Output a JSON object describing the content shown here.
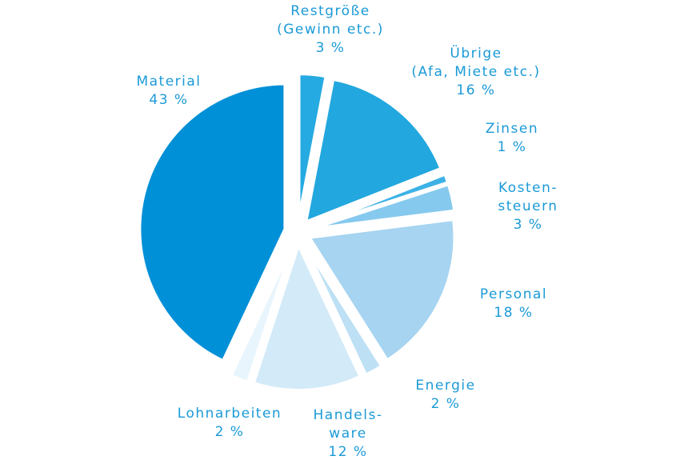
{
  "chart_data": {
    "type": "pie",
    "categories": [
      "Restgröße\n(Gewinn etc.)",
      "Übrige\n(Afa, Miete etc.)",
      "Zinsen",
      "Kosten-\nsteuern",
      "Personal",
      "Energie",
      "Handels-\nware",
      "Lohnarbeiten",
      "Material"
    ],
    "values": [
      3,
      16,
      1,
      3,
      18,
      2,
      12,
      2,
      43
    ],
    "value_labels": [
      "3 %",
      "16 %",
      "1 %",
      "3 %",
      "18 %",
      "2 %",
      "12 %",
      "2 %",
      "43 %"
    ],
    "colors": [
      "#25aae1",
      "#22a7de",
      "#3cb2e6",
      "#86c9ee",
      "#a6d4f1",
      "#bde0f5",
      "#d3eaf8",
      "#e9f5fc",
      "#0090d7"
    ]
  }
}
